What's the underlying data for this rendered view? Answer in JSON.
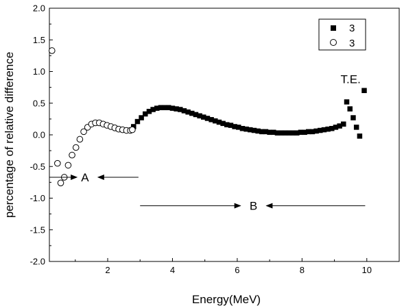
{
  "chart_data": {
    "type": "scatter",
    "xlabel": "Energy(MeV)",
    "ylabel": "percentage of relative difference",
    "xlim": [
      0.2,
      11
    ],
    "ylim": [
      -2.0,
      2.0
    ],
    "x_ticks": [
      2,
      4,
      6,
      8,
      10
    ],
    "x_tick_labels": [
      "2",
      "4",
      "6",
      "8",
      "10"
    ],
    "y_ticks": [
      -2.0,
      -1.5,
      -1.0,
      -0.5,
      0.0,
      0.5,
      1.0,
      1.5,
      2.0
    ],
    "y_tick_labels": [
      "-2.0",
      "-1.5",
      "-1.0",
      "-0.5",
      "0.0",
      "0.5",
      "1.0",
      "1.5",
      "2.0"
    ],
    "grid": false,
    "legend_position": "top-right",
    "series": [
      {
        "name": "3",
        "marker": "filled-square",
        "color": "#000000",
        "x": [
          2.8,
          2.92,
          3.04,
          3.16,
          3.28,
          3.4,
          3.52,
          3.64,
          3.76,
          3.88,
          4.0,
          4.12,
          4.24,
          4.36,
          4.48,
          4.6,
          4.72,
          4.84,
          4.96,
          5.08,
          5.2,
          5.32,
          5.44,
          5.56,
          5.68,
          5.8,
          5.92,
          6.04,
          6.16,
          6.28,
          6.4,
          6.52,
          6.64,
          6.76,
          6.88,
          7.0,
          7.12,
          7.24,
          7.36,
          7.48,
          7.6,
          7.72,
          7.84,
          7.96,
          8.08,
          8.2,
          8.32,
          8.44,
          8.56,
          8.68,
          8.8,
          8.92,
          9.04,
          9.16,
          9.28,
          9.38,
          9.48,
          9.58,
          9.68,
          9.78,
          9.92
        ],
        "y": [
          0.13,
          0.21,
          0.27,
          0.33,
          0.37,
          0.4,
          0.42,
          0.43,
          0.43,
          0.43,
          0.42,
          0.41,
          0.4,
          0.38,
          0.36,
          0.34,
          0.32,
          0.3,
          0.28,
          0.26,
          0.24,
          0.22,
          0.2,
          0.18,
          0.16,
          0.15,
          0.13,
          0.12,
          0.1,
          0.09,
          0.08,
          0.07,
          0.06,
          0.05,
          0.05,
          0.04,
          0.04,
          0.03,
          0.03,
          0.03,
          0.03,
          0.03,
          0.03,
          0.04,
          0.04,
          0.05,
          0.05,
          0.06,
          0.07,
          0.08,
          0.09,
          0.1,
          0.12,
          0.14,
          0.17,
          0.52,
          0.41,
          0.27,
          0.12,
          -0.02,
          0.7
        ]
      },
      {
        "name": "3",
        "marker": "open-circle",
        "color": "#000000",
        "x": [
          0.28,
          0.45,
          0.55,
          0.66,
          0.78,
          0.9,
          1.02,
          1.14,
          1.26,
          1.38,
          1.5,
          1.62,
          1.74,
          1.86,
          1.98,
          2.1,
          2.22,
          2.34,
          2.46,
          2.58,
          2.7,
          2.76
        ],
        "y": [
          1.33,
          -0.45,
          -0.76,
          -0.67,
          -0.48,
          -0.32,
          -0.2,
          -0.07,
          0.05,
          0.12,
          0.17,
          0.19,
          0.19,
          0.17,
          0.15,
          0.13,
          0.11,
          0.09,
          0.08,
          0.07,
          0.07,
          0.08
        ]
      }
    ],
    "annotations": [
      {
        "text": "T.E.",
        "x": 9.5,
        "y": 0.88
      },
      {
        "text": "A",
        "x": 1.3,
        "y": -0.67,
        "arrows": [
          [
            0.2,
            1.05
          ],
          [
            2.95,
            1.7
          ]
        ],
        "arrow_y": -0.67
      },
      {
        "text": "B",
        "x": 6.5,
        "y": -1.12,
        "arrows": [
          [
            3.0,
            6.1
          ],
          [
            9.95,
            6.9
          ]
        ],
        "arrow_y": -1.12
      }
    ]
  }
}
